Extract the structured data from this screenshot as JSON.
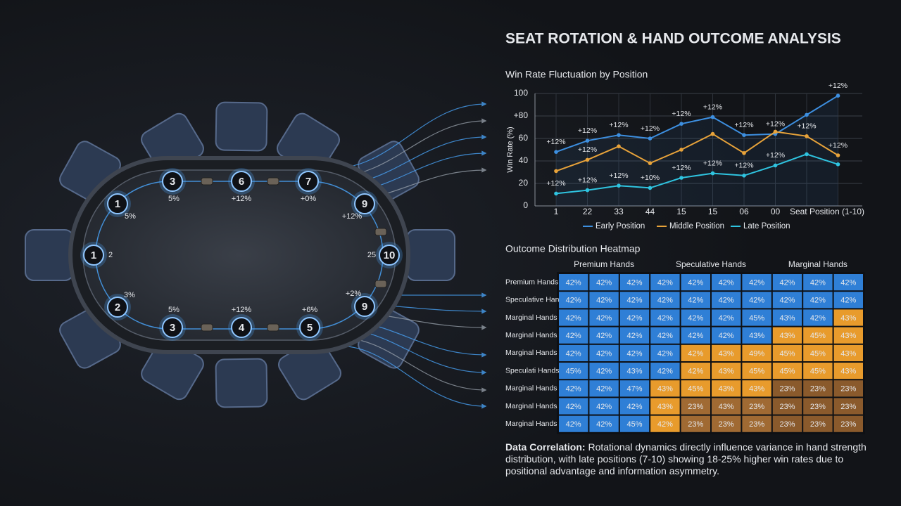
{
  "title": "SEAT ROTATION & HAND OUTCOME ANALYSIS",
  "table": {
    "seats": [
      {
        "number": 3,
        "label": "5%"
      },
      {
        "number": 6,
        "label": "+12%"
      },
      {
        "number": 7,
        "label": "+0%"
      },
      {
        "number": 9,
        "label": "+12%"
      },
      {
        "number": 10,
        "label": "25"
      },
      {
        "number": 9,
        "label": "+2%"
      },
      {
        "number": 5,
        "label": "+6%"
      },
      {
        "number": 4,
        "label": "+12%"
      },
      {
        "number": 3,
        "label": "5%"
      },
      {
        "number": 2,
        "label": "3%"
      },
      {
        "number": 1,
        "label": "2"
      },
      {
        "number": 1,
        "label": "5%"
      }
    ]
  },
  "chart_data": [
    {
      "type": "line",
      "title": "Win Rate Fluctuation by Position",
      "xlabel": "Seat Position (1-10)",
      "ylabel": "Win Rate (%)",
      "categories": [
        "1",
        "22",
        "33",
        "44",
        "15",
        "15",
        "06",
        "00",
        null,
        null
      ],
      "ylim": [
        0,
        100
      ],
      "yticks": [
        0,
        20,
        40,
        60,
        {
          "value": 80,
          "label": "+80"
        },
        100
      ],
      "grid": true,
      "legend": "bottom",
      "series": [
        {
          "name": "Early Position",
          "color": "#3d8fe0",
          "values": [
            48,
            58,
            63,
            60,
            73,
            79,
            63,
            64,
            81,
            98
          ],
          "annotations": [
            "+12%",
            "+12%",
            "+12%",
            "+12%",
            "+12%",
            "+12%",
            "+12%",
            "+12%",
            null,
            "+12%"
          ]
        },
        {
          "name": "Middle Position",
          "color": "#e8a33a",
          "values": [
            31,
            41,
            53,
            38,
            50,
            64,
            47,
            66,
            62,
            45
          ],
          "annotations": [
            null,
            "+12%",
            null,
            null,
            null,
            null,
            null,
            null,
            "+12%",
            "+12%"
          ]
        },
        {
          "name": "Late Position",
          "color": "#2fc4e0",
          "values": [
            11,
            14,
            18,
            16,
            25,
            29,
            27,
            36,
            46,
            37
          ],
          "annotations": [
            "+12%",
            "+12%",
            "+12%",
            "+10%",
            "+12%",
            "+12%",
            "+12%",
            "+12%",
            null,
            null
          ]
        }
      ]
    },
    {
      "type": "heatmap",
      "title": "Outcome Distribution Heatmap",
      "column_groups": [
        "Premium Hands",
        "Speculative Hands",
        "Marginal Hands"
      ],
      "rows": [
        "Premium Hands",
        "Speculative Hands",
        "Marginal Hands",
        "Marginal Hands",
        "Marginal Hands",
        "Speculati Hands",
        "Marginal Hands",
        "Marginal Hands",
        "Marginal Hands"
      ],
      "values": [
        [
          42,
          42,
          42,
          42,
          42,
          42,
          42,
          42,
          42,
          42
        ],
        [
          42,
          42,
          42,
          42,
          42,
          42,
          42,
          42,
          42,
          42
        ],
        [
          42,
          42,
          42,
          42,
          42,
          42,
          45,
          43,
          42,
          43
        ],
        [
          42,
          42,
          42,
          42,
          42,
          42,
          43,
          43,
          45,
          43
        ],
        [
          42,
          42,
          42,
          42,
          42,
          43,
          49,
          45,
          45,
          43
        ],
        [
          45,
          42,
          43,
          42,
          42,
          43,
          45,
          45,
          45,
          43
        ],
        [
          42,
          42,
          47,
          43,
          45,
          43,
          43,
          23,
          23,
          23
        ],
        [
          42,
          42,
          42,
          43,
          23,
          43,
          23,
          23,
          23,
          23
        ],
        [
          42,
          42,
          45,
          42,
          23,
          23,
          23,
          23,
          23,
          23
        ]
      ],
      "value_labels": [
        [
          "42%",
          "42%",
          "42%",
          "42%",
          "42%",
          "42%",
          "42%",
          "42%",
          "42%",
          "42%"
        ],
        [
          "42%",
          "42%",
          "42%",
          "42%",
          "42%",
          "42%",
          "42%",
          "42%",
          "42%",
          "42%"
        ],
        [
          "42%",
          "42%",
          "42%",
          "42%",
          "42%",
          "42%",
          "45%",
          "43%",
          "42%",
          "43%"
        ],
        [
          "42%",
          "42%",
          "42%",
          "42%",
          "42%",
          "42%",
          "43%",
          "43%",
          "45%",
          "43%"
        ],
        [
          "42%",
          "42%",
          "42%",
          "42%",
          "42%",
          "43%",
          "49%",
          "45%",
          "45%",
          "43%"
        ],
        [
          "45%",
          "42%",
          "43%",
          "42%",
          "42%",
          "43%",
          "45%",
          "45%",
          "45%",
          "43%"
        ],
        [
          "42%",
          "42%",
          "47%",
          "43%",
          "45%",
          "43%",
          "43%",
          "23%",
          "23%",
          "23%"
        ],
        [
          "42%",
          "42%",
          "42%",
          "43%",
          "23%",
          "43%",
          "23%",
          "23%",
          "23%",
          "23%"
        ],
        [
          "42%",
          "42%",
          "45%",
          "42%",
          "23%",
          "23%",
          "23%",
          "23%",
          "23%",
          "23%"
        ]
      ],
      "colors": [
        [
          "#2f7fd6",
          "#2f7fd6",
          "#2f7fd6",
          "#2f7fd6",
          "#2f7fd6",
          "#2f7fd6",
          "#2f7fd6",
          "#2f7fd6",
          "#2f7fd6",
          "#2f7fd6"
        ],
        [
          "#2f7fd6",
          "#2f7fd6",
          "#2f7fd6",
          "#2f7fd6",
          "#2f7fd6",
          "#2f7fd6",
          "#2f7fd6",
          "#2f7fd6",
          "#2f7fd6",
          "#2f7fd6"
        ],
        [
          "#2f7fd6",
          "#2f7fd6",
          "#2f7fd6",
          "#2f7fd6",
          "#2f7fd6",
          "#2f7fd6",
          "#2f7fd6",
          "#2f7fd6",
          "#2f7fd6",
          "#e89b2c"
        ],
        [
          "#2f7fd6",
          "#2f7fd6",
          "#2f7fd6",
          "#2f7fd6",
          "#2f7fd6",
          "#2f7fd6",
          "#2f7fd6",
          "#e89b2c",
          "#e89b2c",
          "#e89b2c"
        ],
        [
          "#2f7fd6",
          "#2f7fd6",
          "#2f7fd6",
          "#2f7fd6",
          "#e89b2c",
          "#e89b2c",
          "#e89b2c",
          "#e89b2c",
          "#e89b2c",
          "#e89b2c"
        ],
        [
          "#2f7fd6",
          "#2f7fd6",
          "#2f7fd6",
          "#2f7fd6",
          "#e89b2c",
          "#e89b2c",
          "#e89b2c",
          "#e89b2c",
          "#e89b2c",
          "#e89b2c"
        ],
        [
          "#2f7fd6",
          "#2f7fd6",
          "#2f7fd6",
          "#e89b2c",
          "#e89b2c",
          "#e89b2c",
          "#e89b2c",
          "#8a5a2c",
          "#8a5a2c",
          "#8a5a2c"
        ],
        [
          "#2f7fd6",
          "#2f7fd6",
          "#2f7fd6",
          "#e89b2c",
          "#a06a33",
          "#a06a33",
          "#a06a33",
          "#8a5a2c",
          "#8a5a2c",
          "#8a5a2c"
        ],
        [
          "#2f7fd6",
          "#2f7fd6",
          "#2f7fd6",
          "#e89b2c",
          "#a06a33",
          "#a06a33",
          "#a06a33",
          "#8a5a2c",
          "#8a5a2c",
          "#8a5a2c"
        ]
      ]
    }
  ],
  "footnote": {
    "lead": "Data Correlation:",
    "text": "Rotational dynamics directly influence variance in hand strength distribution, with late positions (7-10) showing 18-25% higher win rates due to positional advantage and information asymmetry."
  }
}
